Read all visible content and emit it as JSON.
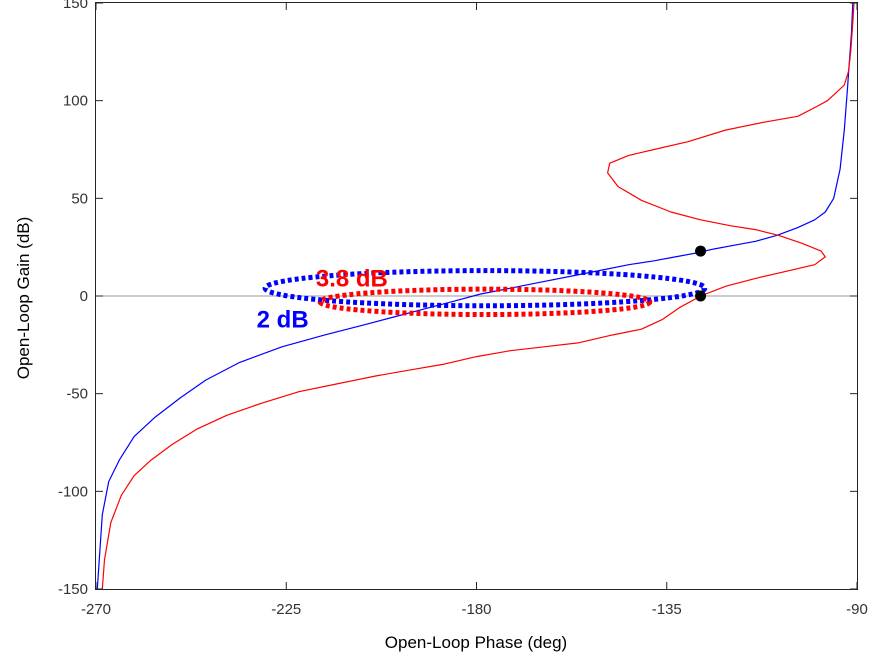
{
  "chart_data": {
    "type": "line",
    "title": "",
    "xlabel": "Open-Loop Phase (deg)",
    "ylabel": "Open-Loop Gain (dB)",
    "xlim": [
      -270,
      -90
    ],
    "ylim": [
      -150,
      150
    ],
    "xticks": [
      -270,
      -225,
      -180,
      -135,
      -90
    ],
    "yticks": [
      -150,
      -100,
      -50,
      0,
      50,
      100,
      150
    ],
    "xtick_labels": [
      "-270",
      "-225",
      "-180",
      "-135",
      "-90"
    ],
    "ytick_labels": [
      "-150",
      "-100",
      "-50",
      "0",
      "50",
      "100",
      "150"
    ],
    "grid": false,
    "zero_line": true,
    "series": [
      {
        "color": "#0000ff",
        "x": [
          -269.7,
          -268.5,
          -267,
          -264.5,
          -261,
          -256,
          -250,
          -244,
          -236,
          -226,
          -216,
          -207,
          -200,
          -193,
          -186,
          -179,
          -172,
          -165,
          -158,
          -151,
          -144,
          -138,
          -133,
          -128,
          -124,
          -119,
          -114,
          -109,
          -104,
          -100,
          -97.5,
          -95.5,
          -94,
          -93,
          -92.3,
          -91.8,
          -91.3,
          -91
        ],
        "y": [
          -150,
          -112,
          -95,
          -84,
          -72,
          -62,
          -52,
          -43,
          -34,
          -26,
          -20,
          -15,
          -11,
          -7,
          -3,
          1,
          4,
          7,
          10,
          13,
          16,
          18,
          20,
          22,
          24,
          26,
          28,
          31,
          35,
          39,
          43,
          50,
          65,
          85,
          105,
          120,
          135,
          150
        ]
      },
      {
        "color": "#ff0000",
        "x": [
          -268.5,
          -268,
          -266.5,
          -264,
          -261,
          -257,
          -252,
          -246,
          -239,
          -231,
          -222,
          -213,
          -204,
          -196,
          -188,
          -180,
          -172,
          -164,
          -156,
          -148,
          -141,
          -136,
          -132,
          -127,
          -121,
          -114,
          -106,
          -100,
          -97.5,
          -98.5,
          -103,
          -108.5,
          -114,
          -120,
          -127,
          -134,
          -141,
          -146.5,
          -149,
          -148.5,
          -144,
          -138,
          -130,
          -121,
          -112,
          -104,
          -99.5,
          -97,
          -95,
          -93,
          -92,
          -91.5,
          -91,
          -90.7
        ],
        "y": [
          -150,
          -135,
          -116,
          -102,
          -92,
          -84,
          -76,
          -68,
          -61,
          -55,
          -49,
          -45,
          -41,
          -38,
          -35,
          -31,
          -28,
          -26,
          -24,
          -20,
          -17,
          -12,
          -6,
          0,
          5,
          9,
          13,
          16,
          20,
          23,
          27,
          31,
          34,
          36,
          39,
          43,
          49,
          56,
          63,
          68,
          72,
          75,
          79,
          85,
          89,
          92,
          97,
          100,
          104,
          108,
          115,
          125,
          140,
          150
        ]
      },
      {
        "color": "#0000ff",
        "dashed": true,
        "ellipse": true,
        "cx": -178,
        "cy": 4,
        "rx": 52,
        "ry": 9
      },
      {
        "color": "#ff0000",
        "dashed": true,
        "ellipse": true,
        "cx": -178,
        "cy": -3,
        "rx": 39,
        "ry": 6.5
      }
    ],
    "markers": [
      {
        "x": -127,
        "y": 23,
        "color": "#000000"
      },
      {
        "x": -127,
        "y": 0,
        "color": "#000000"
      }
    ],
    "annotations": [
      {
        "text": "3.8 dB",
        "x": -218,
        "y": 9,
        "color": "#ff0000"
      },
      {
        "text": "2 dB",
        "x": -232,
        "y": -12,
        "color": "#0000ff"
      }
    ]
  }
}
